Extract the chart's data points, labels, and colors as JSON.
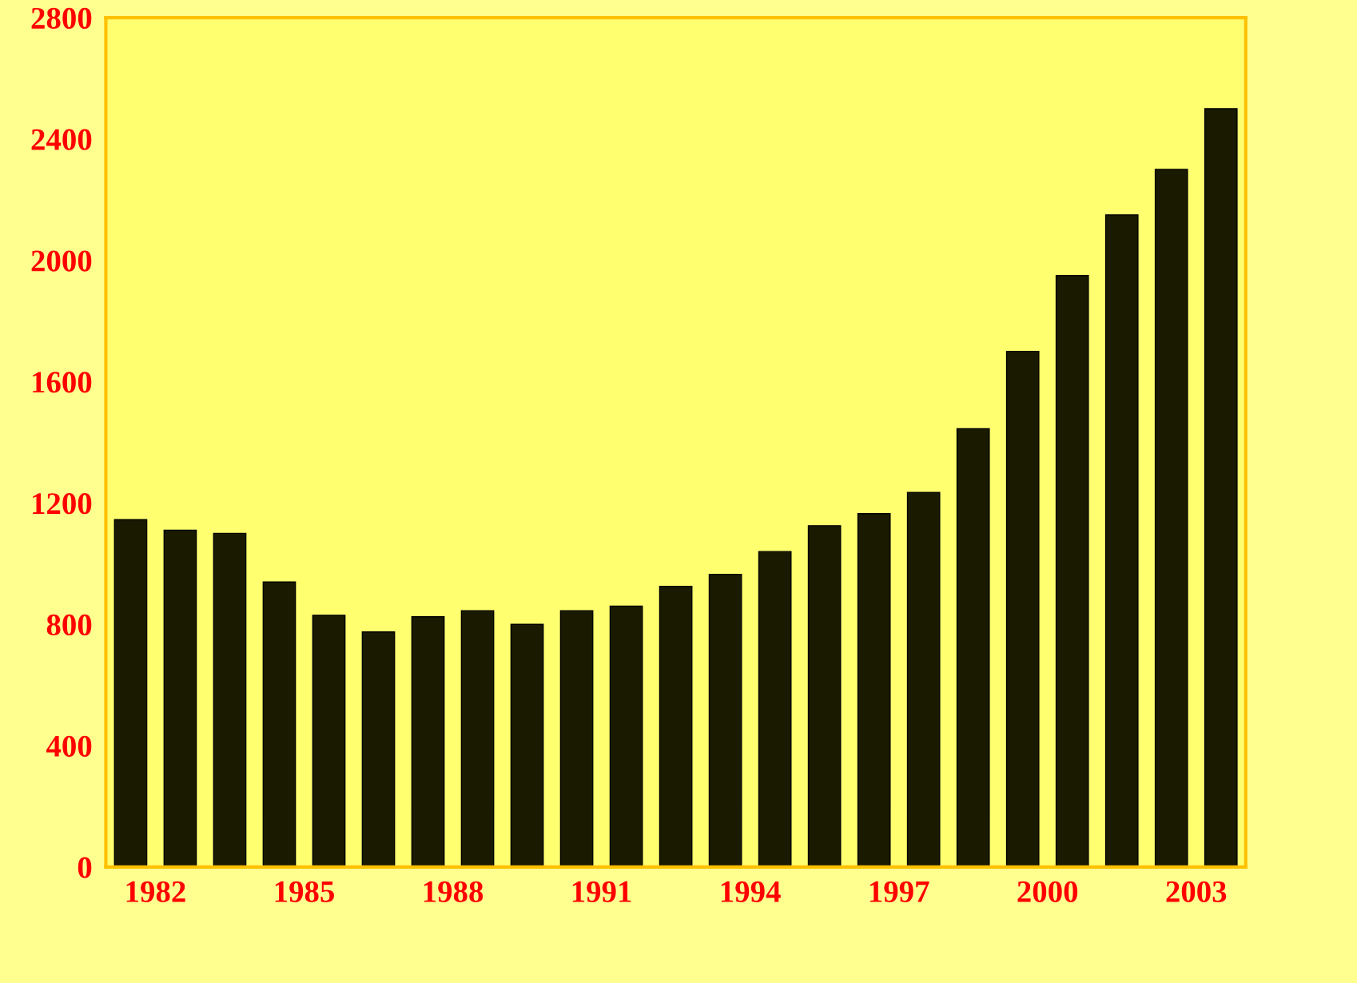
{
  "chart_data": {
    "type": "bar",
    "x": [
      1981.5,
      1982.5,
      1983.5,
      1984.5,
      1985.5,
      1986.5,
      1987.5,
      1988.5,
      1989.5,
      1990.5,
      1991.5,
      1992.5,
      1993.5,
      1994.5,
      1995.5,
      1996.5,
      1997.5,
      1998.5,
      1999.5,
      2000.5,
      2001.5,
      2002.5,
      2003.5
    ],
    "values": [
      1145,
      1110,
      1100,
      940,
      830,
      775,
      825,
      845,
      800,
      845,
      860,
      925,
      965,
      1040,
      1125,
      1165,
      1235,
      1445,
      1700,
      1950,
      2150,
      2300,
      2500
    ],
    "color": "#1a1a00",
    "xlim": [
      1981,
      2004
    ],
    "xticks": [
      1982,
      1985,
      1988,
      1991,
      1994,
      1997,
      2000,
      2003
    ],
    "ylim": [
      0,
      2800
    ],
    "yticks": [
      0,
      400,
      800,
      1200,
      1600,
      2000,
      2400,
      2800
    ],
    "grid": false,
    "legend": false
  }
}
